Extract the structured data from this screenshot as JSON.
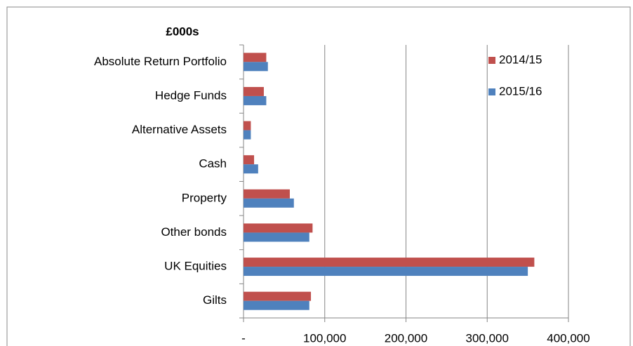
{
  "chart_data": {
    "type": "hbar",
    "title": "£000s",
    "categories": [
      "Absolute Return Portfolio",
      "Hedge Funds",
      "Alternative Assets",
      "Cash",
      "Property",
      "Other bonds",
      "UK Equities",
      "Gilts"
    ],
    "series": [
      {
        "name": "2014/15",
        "color": "#c0504d",
        "values": [
          28000,
          25000,
          9000,
          13000,
          57000,
          85000,
          358000,
          83000
        ]
      },
      {
        "name": "2015/16",
        "color": "#4f81bd",
        "values": [
          30000,
          28000,
          9000,
          18000,
          62000,
          81000,
          350000,
          81000
        ]
      }
    ],
    "xlim": [
      0,
      400000
    ],
    "xticks": [
      {
        "value": 0,
        "label": "-"
      },
      {
        "value": 100000,
        "label": "100,000"
      },
      {
        "value": 200000,
        "label": "200,000"
      },
      {
        "value": 300000,
        "label": "300,000"
      },
      {
        "value": 400000,
        "label": "400,000"
      }
    ],
    "grid": true,
    "legend": "top-right"
  }
}
